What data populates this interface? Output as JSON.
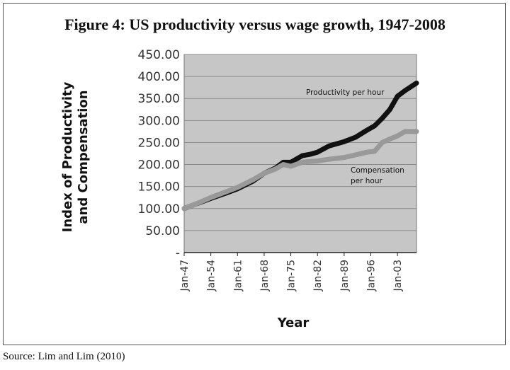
{
  "figure": {
    "title": "Figure 4: US productivity versus wage growth, 1947-2008",
    "source": "Source: Lim and Lim (2010)"
  },
  "chart_data": {
    "type": "line",
    "title": "Figure 4: US productivity versus wage growth, 1947-2008",
    "xlabel": "Year",
    "ylabel": "Index of Productivity and Compensation",
    "ylabel_lines": [
      "Index of Productivity",
      "and Compensation"
    ],
    "x_range": [
      1947,
      2008
    ],
    "ylim": [
      0,
      450
    ],
    "y_ticks": [
      "-",
      "50.00",
      "100.00",
      "150.00",
      "200.00",
      "250.00",
      "300.00",
      "350.00",
      "400.00",
      "450.00"
    ],
    "y_tick_values": [
      0,
      50,
      100,
      150,
      200,
      250,
      300,
      350,
      400,
      450
    ],
    "x_ticks": [
      "Jan-47",
      "Jan-54",
      "Jan-61",
      "Jan-68",
      "Jan-75",
      "Jan-82",
      "Jan-89",
      "Jan-96",
      "Jan-03"
    ],
    "x_tick_values": [
      1947,
      1954,
      1961,
      1968,
      1975,
      1982,
      1989,
      1996,
      2003
    ],
    "grid": true,
    "plot_background": "#c6c6c6",
    "series": [
      {
        "name": "Productivity per hour",
        "color": "#111111",
        "x": [
          1947,
          1950,
          1954,
          1958,
          1961,
          1965,
          1968,
          1971,
          1973,
          1975,
          1978,
          1980,
          1982,
          1985,
          1989,
          1992,
          1995,
          1997,
          1999,
          2001,
          2003,
          2005,
          2008
        ],
        "values": [
          100,
          110,
          123,
          135,
          145,
          162,
          180,
          192,
          205,
          205,
          220,
          223,
          228,
          242,
          252,
          262,
          278,
          288,
          305,
          325,
          355,
          368,
          385
        ]
      },
      {
        "name": "Compensation per hour",
        "color": "#999999",
        "x": [
          1947,
          1950,
          1954,
          1958,
          1961,
          1965,
          1968,
          1971,
          1973,
          1975,
          1978,
          1980,
          1982,
          1985,
          1989,
          1992,
          1995,
          1997,
          1999,
          2001,
          2003,
          2005,
          2008
        ],
        "values": [
          100,
          110,
          125,
          138,
          148,
          165,
          180,
          190,
          200,
          196,
          205,
          207,
          208,
          212,
          216,
          222,
          228,
          230,
          250,
          258,
          265,
          275,
          275
        ]
      }
    ],
    "annotations": [
      {
        "series": 0,
        "lines": [
          "Productivity per hour"
        ]
      },
      {
        "series": 1,
        "lines": [
          "Compensation",
          "per hour"
        ]
      }
    ]
  }
}
